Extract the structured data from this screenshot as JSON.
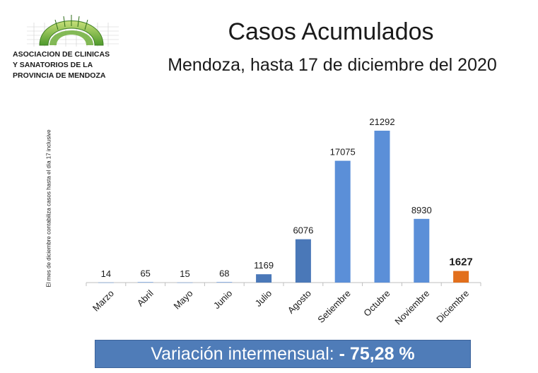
{
  "logo": {
    "lines": [
      "ASOCIACION DE CLINICAS",
      "Y SANATORIOS DE LA",
      "PROVINCIA DE MENDOZA"
    ]
  },
  "header": {
    "title": "Casos Acumulados",
    "subtitle": "Mendoza, hasta 17 de diciembre del 2020"
  },
  "side_note": "El mes de diciembre contabiliza casos hasta el día 17 inclusive",
  "banner": {
    "text": "Variación intermensual: ",
    "value": "- 75,28 %"
  },
  "colors": {
    "bar": "#5b8fd8",
    "bar_dark": "#4a78b8",
    "highlight": "#e26f1c",
    "banner": "#4f7cb8"
  },
  "chart_data": {
    "type": "bar",
    "categories": [
      "Marzo",
      "Abril",
      "Mayo",
      "Junio",
      "Julio",
      "Agosto",
      "Setiembre",
      "Octubre",
      "Noviembre",
      "Diciembre"
    ],
    "values": [
      14,
      65,
      15,
      68,
      1169,
      6076,
      17075,
      21292,
      8930,
      1627
    ],
    "data_labels": [
      "14",
      "65",
      "15",
      "68",
      "1169",
      "6076",
      "17075",
      "21292",
      "8930",
      "1627"
    ],
    "highlight_index": 9,
    "ylim": [
      0,
      21292
    ],
    "grid": false,
    "legend": "none",
    "title": "",
    "xlabel": "",
    "ylabel": ""
  }
}
